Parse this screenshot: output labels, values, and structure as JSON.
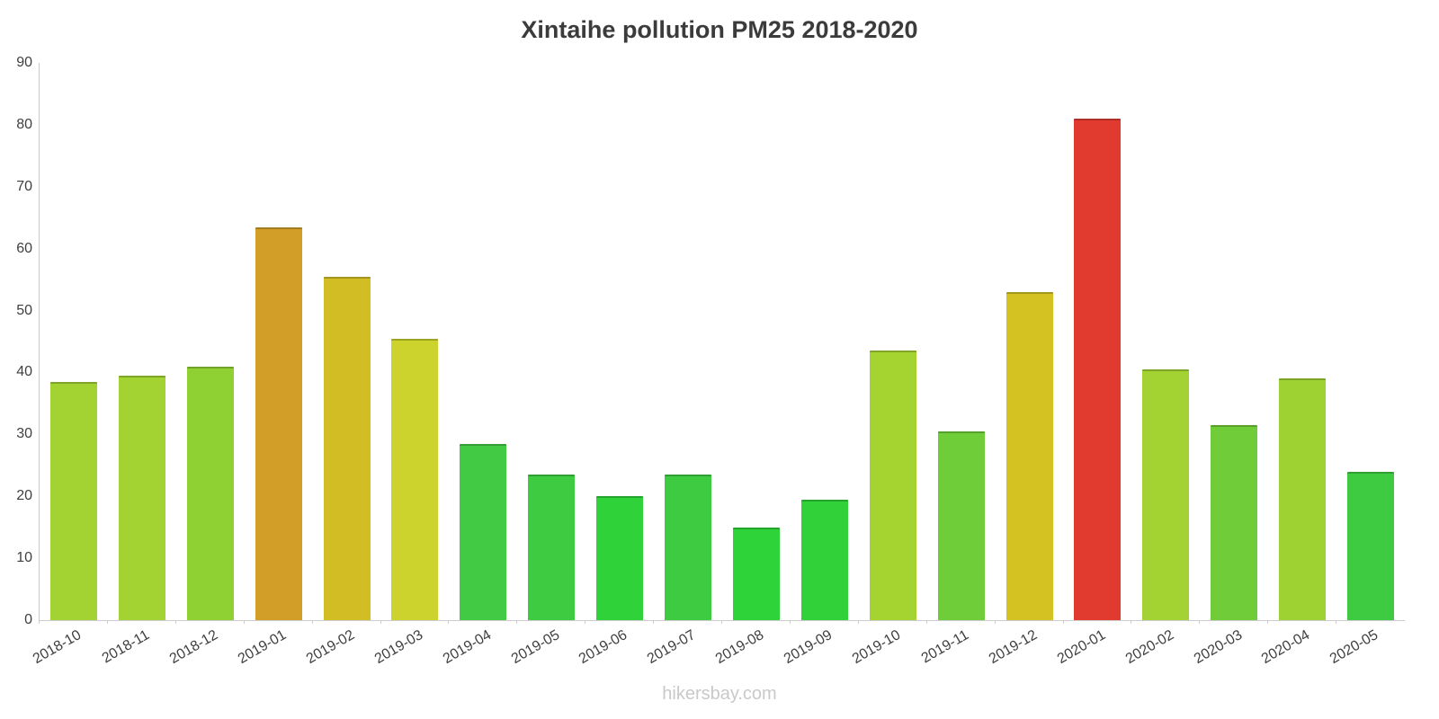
{
  "chart_data": {
    "type": "bar",
    "title": "Xintaihe pollution PM25 2018-2020",
    "xlabel": "",
    "ylabel": "",
    "ylim": [
      0,
      90
    ],
    "y_ticks": [
      0,
      10,
      20,
      30,
      40,
      50,
      60,
      70,
      80,
      90
    ],
    "grid": false,
    "legend": false,
    "categories": [
      "2018-10",
      "2018-11",
      "2018-12",
      "2019-01",
      "2019-02",
      "2019-03",
      "2019-04",
      "2019-05",
      "2019-06",
      "2019-07",
      "2019-08",
      "2019-09",
      "2019-10",
      "2019-11",
      "2019-12",
      "2020-01",
      "2020-02",
      "2020-03",
      "2020-04",
      "2020-05"
    ],
    "values": [
      38.5,
      39.5,
      41,
      63.5,
      55.5,
      45.5,
      28.5,
      23.5,
      20,
      23.5,
      15,
      19.5,
      43.5,
      30.5,
      53,
      81,
      40.5,
      31.5,
      39,
      24
    ],
    "bar_colors": [
      "#a2d332",
      "#a2d332",
      "#8fd033",
      "#d39e27",
      "#d3bd25",
      "#cbd32c",
      "#43ca45",
      "#3ecb41",
      "#2fd239",
      "#3ecb41",
      "#2dd338",
      "#30d139",
      "#a5d431",
      "#6fcd3a",
      "#d4c122",
      "#e13b30",
      "#a2d332",
      "#70cd39",
      "#9ed233",
      "#3ecb41"
    ],
    "axis_color": "#cccccc",
    "label_color": "#3f3f3f",
    "title_color": "#3b3b3b"
  },
  "footer": {
    "watermark": "hikersbay.com"
  }
}
